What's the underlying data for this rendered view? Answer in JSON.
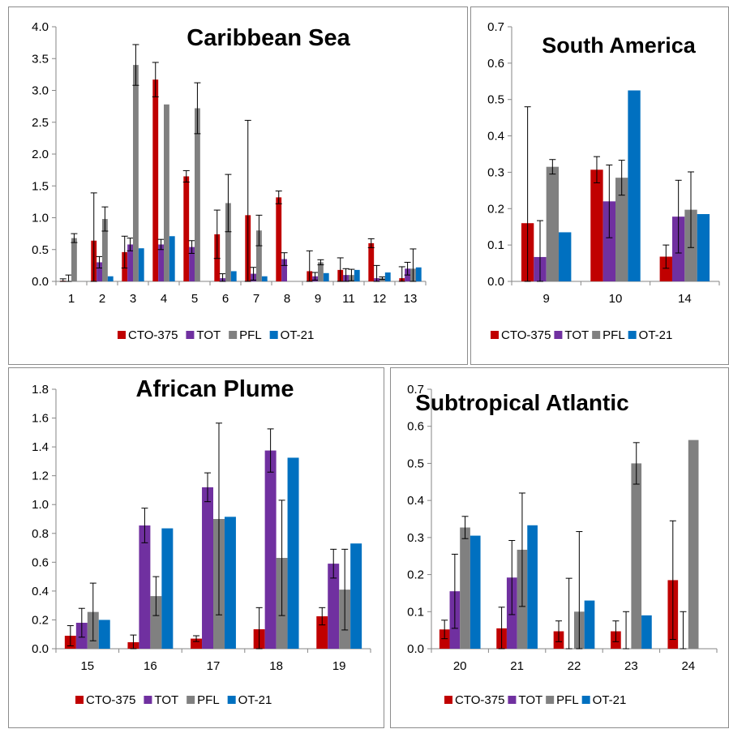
{
  "colors": {
    "CTO-375": "#c00000",
    "TOT": "#7030a0",
    "PFL": "#808080",
    "OT-21": "#0070c0"
  },
  "chart_data": [
    {
      "type": "bar",
      "title": "Caribbean Sea",
      "categories": [
        "1",
        "2",
        "3",
        "4",
        "5",
        "6",
        "7",
        "8",
        "9",
        "11",
        "12",
        "13"
      ],
      "ylim": [
        0,
        4.0
      ],
      "yticks": [
        "0.0",
        "0.5",
        "1.0",
        "1.5",
        "2.0",
        "2.5",
        "3.0",
        "3.5",
        "4.0"
      ],
      "ystep": 0.5,
      "legend": "bottom",
      "series": [
        {
          "name": "CTO-375",
          "values": [
            0.01,
            0.64,
            0.46,
            3.17,
            1.65,
            0.74,
            1.04,
            1.32,
            0.16,
            0.18,
            0.6,
            0.05
          ],
          "errors": [
            0.03,
            0.75,
            0.25,
            0.27,
            0.09,
            0.38,
            1.49,
            0.1,
            0.32,
            0.19,
            0.07,
            0.18
          ]
        },
        {
          "name": "TOT",
          "values": [
            0.0,
            0.3,
            0.58,
            0.58,
            0.54,
            0.05,
            0.12,
            0.35,
            0.08,
            0.1,
            0.05,
            0.2
          ],
          "errors": [
            0.1,
            0.09,
            0.1,
            0.08,
            0.1,
            0.07,
            0.1,
            0.1,
            0.06,
            0.1,
            0.2,
            0.1
          ]
        },
        {
          "name": "PFL",
          "values": [
            0.68,
            0.98,
            3.4,
            2.78,
            2.72,
            1.23,
            0.8,
            0.0,
            0.3,
            0.1,
            0.05,
            0.2
          ],
          "errors": [
            0.07,
            0.19,
            0.32,
            0.0,
            0.4,
            0.45,
            0.24,
            0.0,
            0.04,
            0.09,
            0.02,
            0.31
          ]
        },
        {
          "name": "OT-21",
          "values": [
            0.0,
            0.08,
            0.52,
            0.71,
            0.0,
            0.16,
            0.08,
            0.0,
            0.13,
            0.18,
            0.14,
            0.22
          ],
          "errors": [
            0,
            0,
            0,
            0,
            0,
            0,
            0,
            0,
            0,
            0,
            0,
            0
          ]
        }
      ]
    },
    {
      "type": "bar",
      "title": "South America",
      "categories": [
        "9",
        "10",
        "14"
      ],
      "ylim": [
        0,
        0.7
      ],
      "yticks": [
        "0.0",
        "0.1",
        "0.2",
        "0.3",
        "0.4",
        "0.5",
        "0.6",
        "0.7"
      ],
      "ystep": 0.1,
      "legend": "bottom",
      "series": [
        {
          "name": "CTO-375",
          "values": [
            0.16,
            0.307,
            0.068
          ],
          "errors": [
            0.32,
            0.036,
            0.032
          ]
        },
        {
          "name": "TOT",
          "values": [
            0.067,
            0.22,
            0.178
          ],
          "errors": [
            0.1,
            0.1,
            0.1
          ]
        },
        {
          "name": "PFL",
          "values": [
            0.315,
            0.285,
            0.197
          ],
          "errors": [
            0.02,
            0.048,
            0.104
          ]
        },
        {
          "name": "OT-21",
          "values": [
            0.135,
            0.525,
            0.185
          ],
          "errors": [
            0,
            0,
            0
          ]
        }
      ]
    },
    {
      "type": "bar",
      "title": "African Plume",
      "categories": [
        "15",
        "16",
        "17",
        "18",
        "19"
      ],
      "ylim": [
        0,
        1.8
      ],
      "yticks": [
        "0.0",
        "0.2",
        "0.4",
        "0.6",
        "0.8",
        "1.0",
        "1.2",
        "1.4",
        "1.6",
        "1.8"
      ],
      "ystep": 0.2,
      "legend": "bottom",
      "series": [
        {
          "name": "CTO-375",
          "values": [
            0.09,
            0.045,
            0.07,
            0.135,
            0.225
          ],
          "errors": [
            0.07,
            0.05,
            0.02,
            0.15,
            0.06
          ]
        },
        {
          "name": "TOT",
          "values": [
            0.18,
            0.855,
            1.12,
            1.375,
            0.59
          ],
          "errors": [
            0.1,
            0.12,
            0.1,
            0.15,
            0.1
          ]
        },
        {
          "name": "PFL",
          "values": [
            0.255,
            0.365,
            0.9,
            0.63,
            0.41
          ],
          "errors": [
            0.2,
            0.135,
            0.665,
            0.4,
            0.28
          ]
        },
        {
          "name": "OT-21",
          "values": [
            0.2,
            0.835,
            0.915,
            1.325,
            0.73
          ],
          "errors": [
            0,
            0,
            0,
            0,
            0
          ]
        }
      ]
    },
    {
      "type": "bar",
      "title": "Subtropical Atlantic",
      "categories": [
        "20",
        "21",
        "22",
        "23",
        "24"
      ],
      "ylim": [
        0,
        0.7
      ],
      "yticks": [
        "0.0",
        "0.1",
        "0.2",
        "0.3",
        "0.4",
        "0.5",
        "0.6",
        "0.7"
      ],
      "ystep": 0.1,
      "legend": "bottom",
      "series": [
        {
          "name": "CTO-375",
          "values": [
            0.052,
            0.055,
            0.047,
            0.047,
            0.185
          ],
          "errors": [
            0.025,
            0.057,
            0.028,
            0.028,
            0.16
          ]
        },
        {
          "name": "TOT",
          "values": [
            0.155,
            0.192,
            0.0,
            0.0,
            0.0
          ],
          "errors": [
            0.1,
            0.1,
            0.19,
            0.1,
            0.1
          ]
        },
        {
          "name": "PFL",
          "values": [
            0.327,
            0.267,
            0.1,
            0.5,
            0.563
          ],
          "errors": [
            0.03,
            0.153,
            0.216,
            0.056,
            0.0
          ]
        },
        {
          "name": "OT-21",
          "values": [
            0.305,
            0.333,
            0.13,
            0.09,
            0.0
          ],
          "errors": [
            0,
            0,
            0,
            0,
            0
          ]
        }
      ]
    }
  ]
}
